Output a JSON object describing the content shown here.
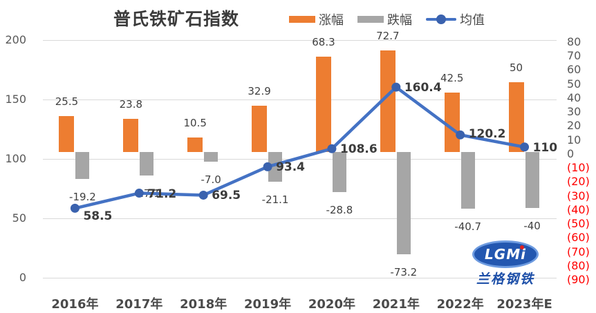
{
  "title": "普氏铁矿石指数",
  "legend": {
    "rise_label": "涨幅",
    "fall_label": "跌幅",
    "mean_label": "均值"
  },
  "colors": {
    "rise": "#ED7D31",
    "fall": "#A6A6A6",
    "line": "#4472C4",
    "marker": "#3A62AE",
    "grid": "#D9D9D9",
    "axis_text": "#595959",
    "negative_tick": "#FF0000",
    "data_label": "#404040"
  },
  "chart_data": {
    "type": "bar",
    "subtype": "combo-bar-line",
    "title": "普氏铁矿石指数",
    "categories": [
      "2016年",
      "2017年",
      "2018年",
      "2019年",
      "2020年",
      "2021年",
      "2022年",
      "2023年E"
    ],
    "series": [
      {
        "name": "涨幅",
        "type": "bar",
        "axis": "right",
        "color": "#ED7D31",
        "values": [
          25.5,
          23.8,
          10.5,
          32.9,
          68.3,
          72.7,
          42.5,
          50
        ],
        "labels": [
          "25.5",
          "23.8",
          "10.5",
          "32.9",
          "68.3",
          "72.7",
          "42.5",
          "50"
        ]
      },
      {
        "name": "跌幅",
        "type": "bar",
        "axis": "right",
        "color": "#A6A6A6",
        "values": [
          -19.2,
          -17.1,
          -7.0,
          -21.1,
          -28.8,
          -73.2,
          -40.7,
          -40
        ],
        "labels": [
          "-19.2",
          "-17.1",
          "-7.0",
          "-21.1",
          "-28.8",
          "-73.2",
          "-40.7",
          "-40"
        ]
      },
      {
        "name": "均值",
        "type": "line",
        "axis": "left",
        "color": "#4472C4",
        "values": [
          58.5,
          71.2,
          69.5,
          93.4,
          108.6,
          160.4,
          120.2,
          110
        ],
        "labels": [
          "58.5",
          "71.2",
          "69.5",
          "93.4",
          "108.6",
          "160.4",
          "120.2",
          "110"
        ]
      }
    ],
    "left_axis": {
      "min": 0,
      "max": 200,
      "ticks": [
        "200",
        "150",
        "100",
        "50",
        "0"
      ],
      "tick_values": [
        200,
        150,
        100,
        50,
        0
      ]
    },
    "right_axis": {
      "min": -90,
      "max": 80,
      "ticks": [
        "80",
        "70",
        "60",
        "50",
        "40",
        "30",
        "20",
        "10",
        "0",
        "(10)",
        "(20)",
        "(30)",
        "(40)",
        "(50)",
        "(60)",
        "(70)",
        "(80)",
        "(90)"
      ],
      "tick_values": [
        80,
        70,
        60,
        50,
        40,
        30,
        20,
        10,
        0,
        -10,
        -20,
        -30,
        -40,
        -50,
        -60,
        -70,
        -80,
        -90
      ]
    },
    "grid": true,
    "legend_position": "top"
  },
  "logo": {
    "main": "LGMi",
    "sub": "兰格钢铁"
  }
}
